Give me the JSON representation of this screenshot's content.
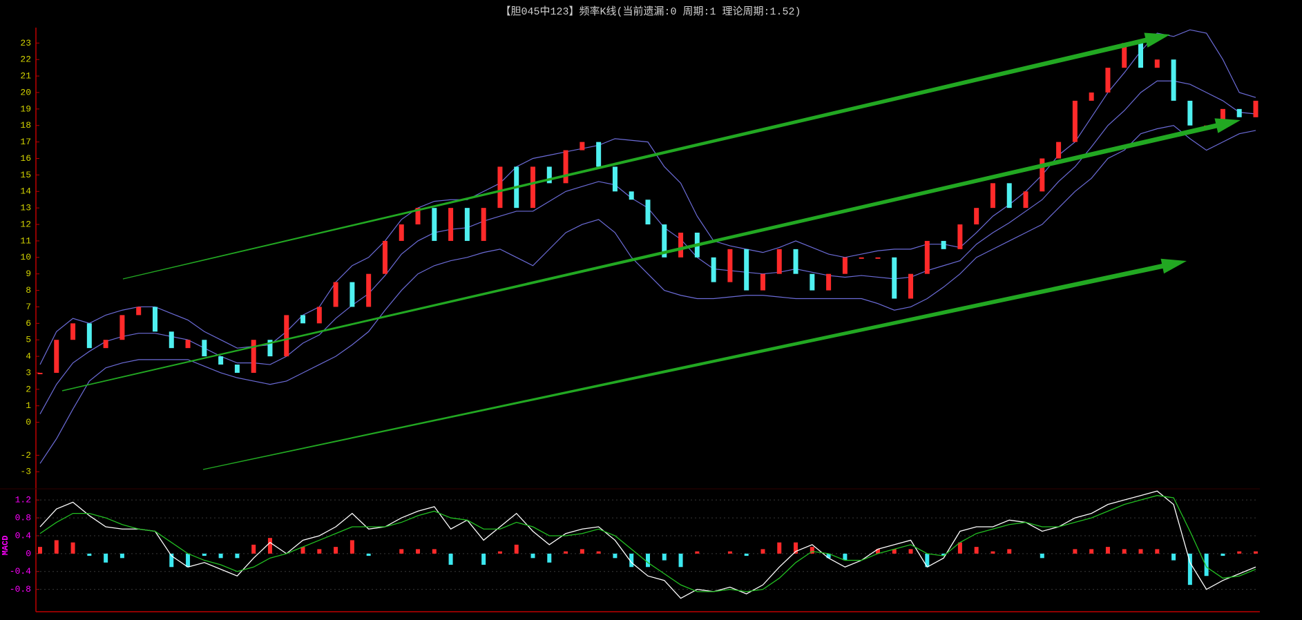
{
  "title": "【胆045中123】频率K线(当前遗漏:0 周期:1 理论周期:1.52)",
  "chart_data": [
    {
      "type": "candlestick",
      "ylim": [
        -3.7,
        23.6
      ],
      "yticks": [
        23,
        22,
        21,
        20,
        19,
        18,
        17,
        16,
        15,
        14,
        13,
        12,
        11,
        10,
        9,
        8,
        7,
        6,
        5,
        4,
        3,
        2,
        1,
        0,
        -2,
        -3
      ],
      "tick_color": "#d4d400",
      "up_color": "#ff2a2a",
      "down_color": "#4ff0f0",
      "values": [
        3,
        5,
        6,
        4.5,
        5,
        6.5,
        7,
        5.5,
        4.5,
        5,
        4,
        3.5,
        3,
        5,
        4,
        6.5,
        6,
        7,
        8.5,
        7,
        9,
        11,
        12,
        13,
        11,
        13,
        11,
        13,
        15.5,
        13,
        15.5,
        14.5,
        16.5,
        17,
        15.5,
        14,
        13.5,
        12,
        10,
        11.5,
        10,
        8.5,
        10.5,
        8,
        9,
        10.5,
        9,
        8,
        9,
        10,
        10,
        10,
        7.5,
        9,
        11,
        10.5,
        12,
        13,
        14.5,
        13,
        14,
        16,
        17,
        19.5,
        20,
        21.5,
        23,
        21.5,
        22,
        19.5,
        18,
        18,
        19,
        18.5,
        19.5
      ],
      "bands": [
        {
          "color": "#6c6cd8",
          "values": [
            3.5,
            5.5,
            6.3,
            6,
            6.5,
            6.8,
            7,
            7,
            6.6,
            6.2,
            5.5,
            5,
            4.5,
            4.6,
            4.7,
            5.5,
            6.5,
            7,
            8.5,
            9.5,
            10,
            11,
            12.3,
            13,
            13.4,
            13.5,
            13.5,
            14,
            14.5,
            15.5,
            16,
            16.2,
            16.4,
            16.6,
            16.8,
            17.2,
            17.1,
            17,
            15.5,
            14.5,
            12.5,
            11,
            10.7,
            10.5,
            10.3,
            10.6,
            11,
            10.6,
            10.2,
            10,
            10.2,
            10.4,
            10.5,
            10.5,
            10.8,
            10.8,
            10.6,
            11.5,
            12.5,
            13.2,
            14,
            15,
            16.2,
            17,
            18.5,
            20,
            21.2,
            22.5,
            23.6,
            23.4,
            23.8,
            23.6,
            22,
            20,
            19.7
          ]
        },
        {
          "color": "#6c6cd8",
          "values": [
            0.5,
            2.3,
            3.6,
            4.3,
            4.9,
            5.2,
            5.4,
            5.4,
            5.2,
            5,
            4.5,
            4,
            3.6,
            3.6,
            3.5,
            4,
            4.8,
            5.3,
            6.3,
            7.1,
            7.8,
            8.9,
            10.2,
            11,
            11.5,
            11.7,
            11.8,
            12.2,
            12.5,
            12.8,
            12.8,
            13.4,
            14,
            14.3,
            14.6,
            14.4,
            13.6,
            13,
            11.8,
            11.1,
            10,
            9.3,
            9.2,
            9.1,
            9,
            9.1,
            9.3,
            9.1,
            8.9,
            8.8,
            8.9,
            8.8,
            8.7,
            8.8,
            9.2,
            9.5,
            9.8,
            10.8,
            11.5,
            12.1,
            12.8,
            13.5,
            14.6,
            15.5,
            16.7,
            18,
            18.9,
            20,
            20.7,
            20.7,
            20.5,
            20,
            19.5,
            18.8,
            18.7
          ]
        },
        {
          "color": "#6c6cd8",
          "values": [
            -2.5,
            -1,
            0.8,
            2.5,
            3.3,
            3.6,
            3.8,
            3.8,
            3.8,
            3.8,
            3.4,
            3,
            2.7,
            2.5,
            2.3,
            2.5,
            3,
            3.5,
            4,
            4.7,
            5.5,
            6.8,
            8,
            9,
            9.5,
            9.8,
            10,
            10.3,
            10.5,
            10,
            9.5,
            10.5,
            11.5,
            12,
            12.3,
            11.5,
            10,
            9,
            8,
            7.7,
            7.5,
            7.5,
            7.6,
            7.7,
            7.7,
            7.6,
            7.5,
            7.5,
            7.5,
            7.5,
            7.5,
            7.2,
            6.8,
            7,
            7.5,
            8.2,
            9,
            10,
            10.5,
            11,
            11.5,
            12,
            13,
            14,
            14.8,
            16,
            16.5,
            17.5,
            17.8,
            18,
            17.2,
            16.5,
            17,
            17.5,
            17.7
          ]
        }
      ]
    },
    {
      "type": "macd",
      "label": "MACD",
      "label_color": "#ff00ff",
      "ylim": [
        -1.3,
        1.45
      ],
      "yticks": [
        1.2,
        0.8,
        0.4,
        0,
        -0.4,
        -0.8
      ],
      "tick_color": "#ff00ff",
      "grid": true,
      "series": [
        {
          "color": "#ffffff",
          "values": [
            0.6,
            1.0,
            1.15,
            0.85,
            0.6,
            0.55,
            0.55,
            0.5,
            -0.05,
            -0.3,
            -0.2,
            -0.35,
            -0.5,
            -0.1,
            0.25,
            0.0,
            0.3,
            0.4,
            0.6,
            0.9,
            0.55,
            0.6,
            0.8,
            0.95,
            1.05,
            0.55,
            0.75,
            0.3,
            0.6,
            0.9,
            0.5,
            0.2,
            0.45,
            0.55,
            0.6,
            0.3,
            -0.2,
            -0.5,
            -0.6,
            -1.0,
            -0.8,
            -0.85,
            -0.75,
            -0.9,
            -0.7,
            -0.3,
            0.05,
            0.2,
            -0.1,
            -0.3,
            -0.15,
            0.1,
            0.2,
            0.3,
            -0.3,
            -0.1,
            0.5,
            0.6,
            0.6,
            0.75,
            0.7,
            0.5,
            0.6,
            0.8,
            0.9,
            1.1,
            1.2,
            1.3,
            1.4,
            1.1,
            -0.2,
            -0.8,
            -0.6,
            -0.45,
            -0.3
          ]
        },
        {
          "color": "#22c022",
          "values": [
            0.45,
            0.7,
            0.9,
            0.9,
            0.8,
            0.65,
            0.55,
            0.5,
            0.25,
            0.0,
            -0.15,
            -0.25,
            -0.4,
            -0.3,
            -0.1,
            0.0,
            0.15,
            0.3,
            0.45,
            0.6,
            0.6,
            0.6,
            0.7,
            0.85,
            0.95,
            0.8,
            0.75,
            0.55,
            0.55,
            0.7,
            0.6,
            0.4,
            0.4,
            0.45,
            0.55,
            0.4,
            0.1,
            -0.2,
            -0.45,
            -0.7,
            -0.85,
            -0.85,
            -0.8,
            -0.85,
            -0.8,
            -0.55,
            -0.2,
            0.05,
            0.0,
            -0.15,
            -0.15,
            0.0,
            0.1,
            0.2,
            0.0,
            -0.05,
            0.25,
            0.45,
            0.55,
            0.65,
            0.7,
            0.6,
            0.6,
            0.7,
            0.8,
            0.95,
            1.1,
            1.2,
            1.3,
            1.25,
            0.5,
            -0.3,
            -0.55,
            -0.5,
            -0.35
          ]
        }
      ],
      "histogram": {
        "up_color": "#ff2a2a",
        "down_color": "#3ce8f0",
        "values": [
          0.15,
          0.3,
          0.25,
          -0.05,
          -0.2,
          -0.1,
          0,
          0,
          -0.3,
          -0.3,
          -0.05,
          -0.1,
          -0.1,
          0.2,
          0.35,
          0,
          0.15,
          0.1,
          0.15,
          0.3,
          -0.05,
          0,
          0.1,
          0.1,
          0.1,
          -0.25,
          0,
          -0.25,
          0.05,
          0.2,
          -0.1,
          -0.2,
          0.05,
          0.1,
          0.05,
          -0.1,
          -0.3,
          -0.3,
          -0.15,
          -0.3,
          0.05,
          0,
          0.05,
          -0.05,
          0.1,
          0.25,
          0.25,
          0.15,
          -0.1,
          -0.15,
          0,
          0.1,
          0.1,
          0.1,
          -0.3,
          -0.05,
          0.25,
          0.15,
          0.05,
          0.1,
          0,
          -0.1,
          0,
          0.1,
          0.1,
          0.15,
          0.1,
          0.1,
          0.1,
          -0.15,
          -0.7,
          -0.5,
          -0.05,
          0.05,
          0.05
        ]
      }
    }
  ]
}
